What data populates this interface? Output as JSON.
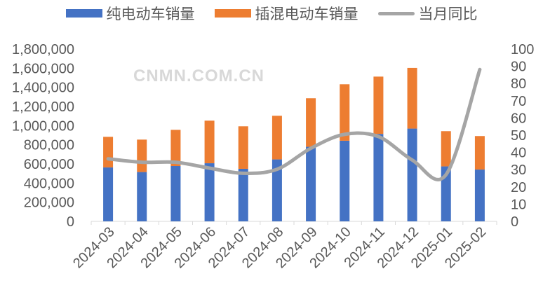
{
  "chart_data": {
    "type": "bar",
    "stacked": true,
    "categories": [
      "2024-03",
      "2024-04",
      "2024-05",
      "2024-06",
      "2024-07",
      "2024-08",
      "2024-09",
      "2024-10",
      "2024-11",
      "2024-12",
      "2025-01",
      "2025-02"
    ],
    "series": [
      {
        "name": "纯电动车销量",
        "type": "bar",
        "axis": "left",
        "color": "#4472C4",
        "values": [
          563000,
          515000,
          578000,
          607000,
          549000,
          647000,
          779000,
          842000,
          913000,
          969000,
          574000,
          541000
        ]
      },
      {
        "name": "插混电动车销量",
        "type": "bar",
        "axis": "left",
        "color": "#ED7D31",
        "values": [
          320000,
          339000,
          378000,
          445000,
          444000,
          456000,
          507000,
          590000,
          599000,
          634000,
          368000,
          350000
        ]
      },
      {
        "name": "当月同比",
        "type": "line",
        "axis": "right",
        "color": "#A5A5A5",
        "values": [
          36.3,
          34.3,
          34.3,
          30.9,
          27.9,
          30.2,
          42.4,
          50.5,
          49.2,
          35.6,
          27.1,
          88.1
        ]
      }
    ],
    "left_axis": {
      "ylim": [
        0,
        1800000
      ],
      "ticks": [
        "0",
        "200,000",
        "400,000",
        "600,000",
        "800,000",
        "1,000,000",
        "1,200,000",
        "1,400,000",
        "1,600,000",
        "1,800,000"
      ]
    },
    "right_axis": {
      "ylim": [
        0,
        100
      ],
      "ticks": [
        "0",
        "10",
        "20",
        "30",
        "40",
        "50",
        "60",
        "70",
        "80",
        "90",
        "100"
      ]
    },
    "grid": false,
    "legend": "top"
  },
  "watermark": "CNMN.COM.CN"
}
